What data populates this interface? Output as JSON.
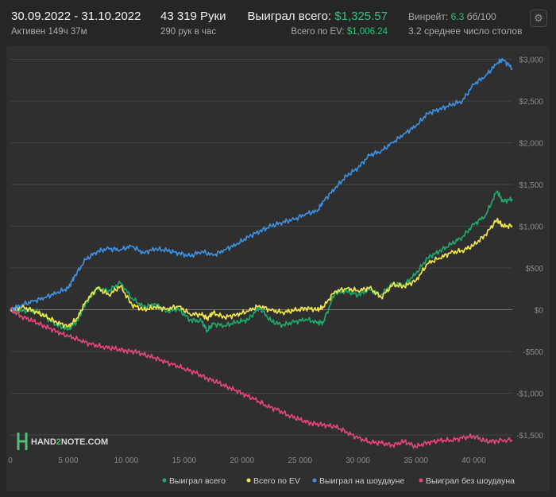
{
  "header": {
    "date_range": "30.09.2022 - 31.10.2022",
    "active": "Активен 149ч 37м",
    "hands": "43 319 Руки",
    "hands_per_hour": "290 рук в час",
    "won_label": "Выиграл всего:",
    "won_value": "$1,325.57",
    "ev_label": "Всего по EV:",
    "ev_value": "$1,006.24",
    "winrate_label": "Винрейт:",
    "winrate_value": "6.3",
    "winrate_unit": "бб/100",
    "tables": "3.2 среднее число столов"
  },
  "settings_icon": "gear-icon",
  "logo": {
    "text_pre": "HAND",
    "text_accent": "2",
    "text_post": "NOTE.COM"
  },
  "colors": {
    "won_total": "#1ea86a",
    "ev": "#f1e44a",
    "showdown": "#3d8fe0",
    "non_showdown": "#e0457b",
    "accent_green": "#2ec27e"
  },
  "chart_data": {
    "type": "line",
    "xlim": [
      0,
      43319
    ],
    "ylim": [
      -1700,
      3100
    ],
    "x_ticks": [
      0,
      5000,
      10000,
      15000,
      20000,
      25000,
      30000,
      35000,
      40000
    ],
    "x_tick_labels": [
      "0",
      "5 000",
      "10 000",
      "15 000",
      "20 000",
      "25 000",
      "30 000",
      "35 000",
      "40 000"
    ],
    "y_ticks": [
      3000,
      2500,
      2000,
      1500,
      1000,
      500,
      0,
      -500,
      -1000,
      -1500
    ],
    "y_tick_labels": [
      "$3,000",
      "$2,500",
      "$2,000",
      "$1,500",
      "$1,000",
      "$500",
      "$0",
      "-$500",
      "-$1,000",
      "-$1,500"
    ],
    "legend_position": "bottom-right",
    "series": [
      {
        "name": "Выиграл всего",
        "color": "#1ea86a",
        "x": [
          0,
          1000,
          2000,
          3000,
          4000,
          5000,
          5800,
          6500,
          7500,
          8500,
          9500,
          10500,
          11500,
          12500,
          13500,
          14500,
          15500,
          16500,
          17000,
          17500,
          18500,
          19500,
          20500,
          21500,
          22500,
          23500,
          24500,
          25500,
          26500,
          27000,
          28000,
          29000,
          30000,
          31000,
          32000,
          33000,
          34000,
          35000,
          36000,
          37000,
          38000,
          39000,
          40000,
          41000,
          42000,
          42500,
          43319
        ],
        "y": [
          0,
          -20,
          0,
          -80,
          -180,
          -240,
          -130,
          80,
          250,
          230,
          320,
          140,
          30,
          70,
          -20,
          10,
          -120,
          -140,
          -250,
          -170,
          -190,
          -150,
          -120,
          30,
          -140,
          -180,
          -150,
          -110,
          -160,
          -150,
          200,
          220,
          180,
          240,
          180,
          310,
          300,
          430,
          620,
          700,
          780,
          870,
          1020,
          1130,
          1420,
          1300,
          1325
        ]
      },
      {
        "name": "Всего по EV",
        "color": "#f1e44a",
        "x": [
          0,
          1000,
          2000,
          3000,
          4000,
          5000,
          5800,
          6500,
          7500,
          8500,
          9500,
          10500,
          11500,
          12500,
          13500,
          14500,
          15500,
          16500,
          17000,
          17500,
          18500,
          19500,
          20500,
          21500,
          22500,
          23500,
          24500,
          25500,
          26500,
          27000,
          28000,
          29000,
          30000,
          31000,
          32000,
          33000,
          34000,
          35000,
          36000,
          37000,
          38000,
          39000,
          40000,
          41000,
          42000,
          42500,
          43319
        ],
        "y": [
          0,
          30,
          -10,
          -80,
          -150,
          -200,
          -100,
          100,
          260,
          180,
          280,
          60,
          0,
          30,
          10,
          40,
          -50,
          -60,
          -100,
          -40,
          -90,
          -60,
          -20,
          50,
          -10,
          -30,
          -10,
          20,
          0,
          30,
          220,
          250,
          230,
          260,
          150,
          300,
          280,
          350,
          550,
          620,
          680,
          710,
          770,
          900,
          1080,
          1000,
          1006
        ]
      },
      {
        "name": "Выиграл на шоудауне",
        "color": "#3d8fe0",
        "x": [
          0,
          1000,
          2000,
          3000,
          4000,
          5000,
          5500,
          6500,
          7500,
          8500,
          9500,
          10500,
          11500,
          12500,
          13500,
          14500,
          15500,
          16500,
          17500,
          18500,
          19500,
          20500,
          21500,
          22500,
          23500,
          24500,
          25500,
          26500,
          27000,
          28000,
          29000,
          30000,
          31000,
          32000,
          33000,
          34000,
          35000,
          36000,
          37000,
          38000,
          39000,
          40000,
          41000,
          42000,
          42500,
          43319
        ],
        "y": [
          0,
          60,
          100,
          150,
          200,
          260,
          390,
          600,
          700,
          730,
          720,
          760,
          680,
          730,
          710,
          680,
          640,
          700,
          650,
          720,
          780,
          870,
          940,
          1000,
          1050,
          1080,
          1150,
          1180,
          1300,
          1450,
          1600,
          1700,
          1850,
          1900,
          2000,
          2110,
          2200,
          2350,
          2400,
          2450,
          2500,
          2700,
          2800,
          2950,
          3000,
          2890
        ]
      },
      {
        "name": "Выиграл без шоудауна",
        "color": "#e0457b",
        "x": [
          0,
          1000,
          2000,
          3000,
          4000,
          5000,
          6000,
          7000,
          8000,
          9000,
          10000,
          11000,
          12000,
          13000,
          14000,
          15000,
          16000,
          17000,
          18000,
          19000,
          20000,
          21000,
          22000,
          23000,
          24000,
          25000,
          26000,
          27000,
          28000,
          29000,
          30000,
          31000,
          32000,
          33000,
          34000,
          35000,
          36000,
          37000,
          38000,
          39000,
          40000,
          41000,
          42000,
          43319
        ],
        "y": [
          0,
          -80,
          -140,
          -200,
          -260,
          -320,
          -360,
          -420,
          -440,
          -470,
          -490,
          -510,
          -560,
          -600,
          -660,
          -700,
          -760,
          -820,
          -880,
          -940,
          -1000,
          -1070,
          -1140,
          -1200,
          -1260,
          -1320,
          -1360,
          -1380,
          -1400,
          -1460,
          -1540,
          -1580,
          -1600,
          -1620,
          -1580,
          -1640,
          -1590,
          -1570,
          -1560,
          -1540,
          -1510,
          -1580,
          -1570,
          -1560
        ]
      }
    ]
  }
}
